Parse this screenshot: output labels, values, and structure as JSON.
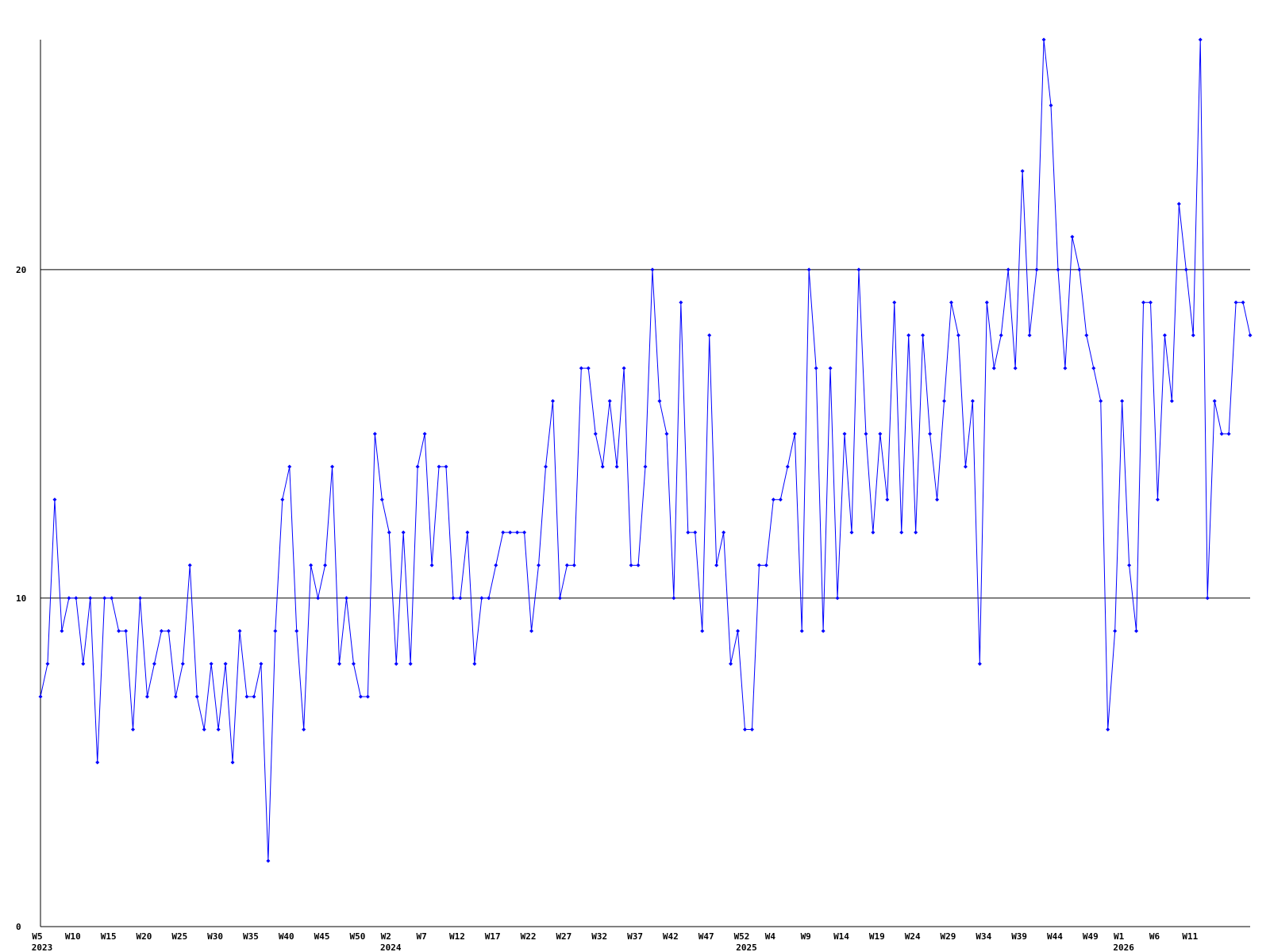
{
  "chart_data": {
    "type": "line",
    "categories": [
      "W5",
      null,
      null,
      null,
      null,
      "W10",
      null,
      null,
      null,
      null,
      "W15",
      null,
      null,
      null,
      null,
      "W20",
      null,
      null,
      null,
      null,
      "W25",
      null,
      null,
      null,
      null,
      "W30",
      null,
      null,
      null,
      null,
      "W35",
      null,
      null,
      null,
      null,
      "W40",
      null,
      null,
      null,
      null,
      "W45",
      null,
      null,
      null,
      null,
      "W50",
      null,
      null,
      null,
      "W2",
      null,
      null,
      null,
      null,
      "W7",
      null,
      null,
      null,
      null,
      "W12",
      null,
      null,
      null,
      null,
      "W17",
      null,
      null,
      null,
      null,
      "W22",
      null,
      null,
      null,
      null,
      "W27",
      null,
      null,
      null,
      null,
      "W32",
      null,
      null,
      null,
      null,
      "W37",
      null,
      null,
      null,
      null,
      "W42",
      null,
      null,
      null,
      null,
      "W47",
      null,
      null,
      null,
      null,
      "W52",
      null,
      null,
      null,
      "W4",
      null,
      null,
      null,
      null,
      "W9",
      null,
      null,
      null,
      null,
      "W14",
      null,
      null,
      null,
      null,
      "W19",
      null,
      null,
      null,
      null,
      "W24",
      null,
      null,
      null,
      null,
      "W29",
      null,
      null,
      null,
      null,
      "W34",
      null,
      null,
      null,
      null,
      "W39",
      null,
      null,
      null,
      null,
      "W44",
      null,
      null,
      null,
      null,
      "W49",
      null,
      null,
      null,
      "W1",
      null,
      null,
      null,
      null,
      "W6",
      null,
      null,
      null,
      null,
      "W11",
      null,
      null,
      null,
      null,
      null,
      null,
      null,
      null
    ],
    "category_years": [
      "2023",
      null,
      null,
      null,
      null,
      null,
      null,
      null,
      null,
      null,
      null,
      null,
      null,
      null,
      null,
      null,
      null,
      null,
      null,
      null,
      null,
      null,
      null,
      null,
      null,
      null,
      null,
      null,
      null,
      null,
      null,
      null,
      null,
      null,
      null,
      null,
      null,
      null,
      null,
      null,
      null,
      null,
      null,
      null,
      null,
      null,
      null,
      null,
      null,
      "2024",
      null,
      null,
      null,
      null,
      null,
      null,
      null,
      null,
      null,
      null,
      null,
      null,
      null,
      null,
      null,
      null,
      null,
      null,
      null,
      null,
      null,
      null,
      null,
      null,
      null,
      null,
      null,
      null,
      null,
      null,
      null,
      null,
      null,
      null,
      null,
      null,
      null,
      null,
      null,
      null,
      null,
      null,
      null,
      null,
      null,
      null,
      null,
      null,
      null,
      "2025",
      null,
      null,
      null,
      null,
      null,
      null,
      null,
      null,
      null,
      null,
      null,
      null,
      null,
      null,
      null,
      null,
      null,
      null,
      null,
      null,
      null,
      null,
      null,
      null,
      null,
      null,
      null,
      null,
      null,
      null,
      null,
      null,
      null,
      null,
      null,
      null,
      null,
      null,
      null,
      null,
      null,
      null,
      null,
      null,
      null,
      null,
      null,
      null,
      null,
      null,
      null,
      null,
      "2026",
      null,
      null,
      null,
      null,
      null,
      null,
      null,
      null,
      null,
      null,
      null,
      null,
      null,
      null,
      null,
      null,
      null,
      null
    ],
    "values": [
      7,
      8,
      13,
      9,
      10,
      10,
      8,
      10,
      5,
      10,
      10,
      9,
      9,
      6,
      10,
      7,
      8,
      9,
      9,
      7,
      8,
      11,
      7,
      6,
      8,
      6,
      8,
      5,
      9,
      7,
      7,
      8,
      2,
      9,
      13,
      14,
      9,
      6,
      11,
      10,
      11,
      14,
      8,
      10,
      8,
      7,
      7,
      15,
      13,
      12,
      8,
      12,
      8,
      14,
      15,
      11,
      14,
      14,
      10,
      10,
      12,
      8,
      10,
      10,
      11,
      12,
      12,
      12,
      12,
      9,
      11,
      14,
      16,
      10,
      11,
      11,
      17,
      17,
      15,
      14,
      16,
      14,
      17,
      11,
      11,
      14,
      20,
      16,
      15,
      10,
      19,
      12,
      12,
      9,
      18,
      11,
      12,
      8,
      9,
      6,
      6,
      11,
      11,
      13,
      13,
      14,
      15,
      9,
      20,
      17,
      9,
      17,
      10,
      15,
      12,
      20,
      15,
      12,
      15,
      13,
      19,
      12,
      18,
      12,
      18,
      15,
      13,
      16,
      19,
      18,
      14,
      16,
      8,
      19,
      17,
      18,
      20,
      17,
      23,
      18,
      20,
      27,
      25,
      20,
      17,
      21,
      20,
      18,
      17,
      16,
      6,
      9,
      16,
      11,
      9,
      19,
      19,
      13,
      18,
      16,
      22,
      20,
      18,
      27,
      10,
      16,
      15,
      15,
      19,
      19,
      18
    ],
    "color": "#0000ff",
    "ylim": [
      0,
      27
    ],
    "yticks": [
      0,
      10,
      20
    ],
    "grid": true
  }
}
